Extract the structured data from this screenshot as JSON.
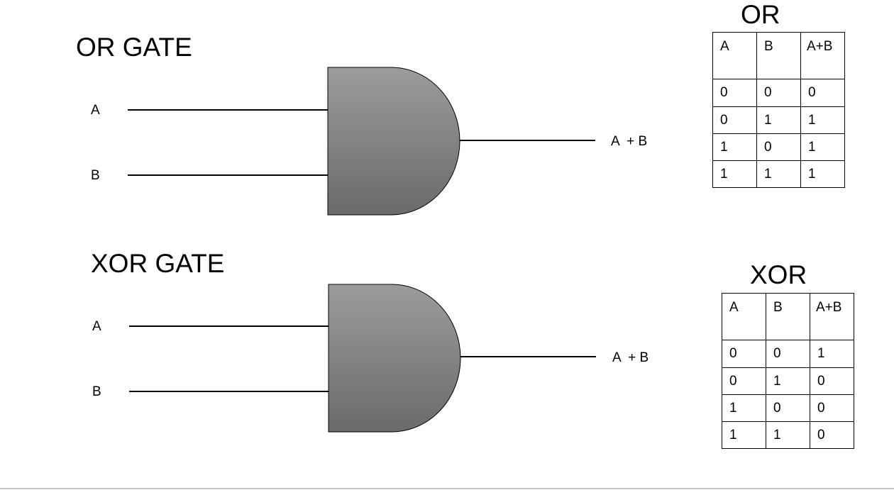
{
  "or_section": {
    "title": "OR GATE",
    "input_a": "A",
    "input_b": "B",
    "output": "A  + B"
  },
  "xor_section": {
    "title": "XOR GATE",
    "input_a": "A",
    "input_b": "B",
    "output": "A  + B"
  },
  "or_table": {
    "title": "OR",
    "headers": [
      "A",
      "B",
      "A+B"
    ],
    "rows": [
      [
        "0",
        "0",
        "0"
      ],
      [
        "0",
        "1",
        "1"
      ],
      [
        "1",
        "0",
        "1"
      ],
      [
        "1",
        "1",
        "1"
      ]
    ]
  },
  "xor_table": {
    "title": "XOR",
    "headers": [
      "A",
      "B",
      "A+B"
    ],
    "rows": [
      [
        "0",
        "0",
        "1"
      ],
      [
        "0",
        "1",
        "0"
      ],
      [
        "1",
        "0",
        "0"
      ],
      [
        "1",
        "1",
        "0"
      ]
    ]
  },
  "colors": {
    "gate_fill_top": "#9a9a9a",
    "gate_fill_bottom": "#6b6b6b",
    "line": "#000000"
  }
}
